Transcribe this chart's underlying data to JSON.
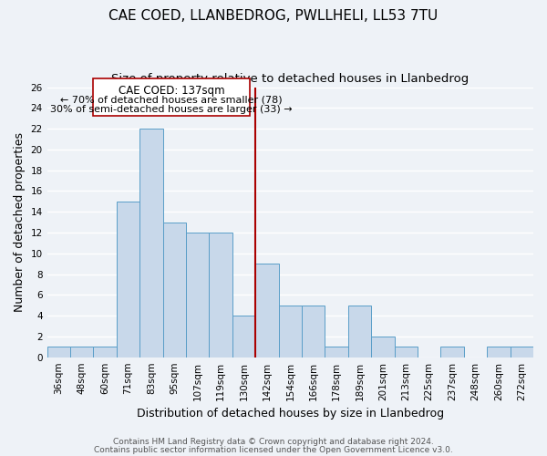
{
  "title": "CAE COED, LLANBEDROG, PWLLHELI, LL53 7TU",
  "subtitle": "Size of property relative to detached houses in Llanbedrog",
  "xlabel": "Distribution of detached houses by size in Llanbedrog",
  "ylabel": "Number of detached properties",
  "bar_labels": [
    "36sqm",
    "48sqm",
    "60sqm",
    "71sqm",
    "83sqm",
    "95sqm",
    "107sqm",
    "119sqm",
    "130sqm",
    "142sqm",
    "154sqm",
    "166sqm",
    "178sqm",
    "189sqm",
    "201sqm",
    "213sqm",
    "225sqm",
    "237sqm",
    "248sqm",
    "260sqm",
    "272sqm"
  ],
  "bar_values": [
    1,
    1,
    1,
    15,
    22,
    13,
    12,
    12,
    4,
    9,
    5,
    5,
    1,
    5,
    2,
    1,
    0,
    1,
    0,
    1,
    1
  ],
  "bar_color": "#c8d8ea",
  "bar_edge_color": "#5a9ec8",
  "vline_color": "#aa0000",
  "ylim": [
    0,
    26
  ],
  "yticks": [
    0,
    2,
    4,
    6,
    8,
    10,
    12,
    14,
    16,
    18,
    20,
    22,
    24,
    26
  ],
  "annotation_title": "CAE COED: 137sqm",
  "annotation_line1": "← 70% of detached houses are smaller (78)",
  "annotation_line2": "30% of semi-detached houses are larger (33) →",
  "footer1": "Contains HM Land Registry data © Crown copyright and database right 2024.",
  "footer2": "Contains public sector information licensed under the Open Government Licence v3.0.",
  "background_color": "#eef2f7",
  "grid_color": "#ffffff",
  "title_fontsize": 11,
  "subtitle_fontsize": 9.5,
  "xlabel_fontsize": 9,
  "ylabel_fontsize": 9,
  "tick_fontsize": 7.5,
  "ann_fontsize": 8,
  "footer_fontsize": 6.5
}
